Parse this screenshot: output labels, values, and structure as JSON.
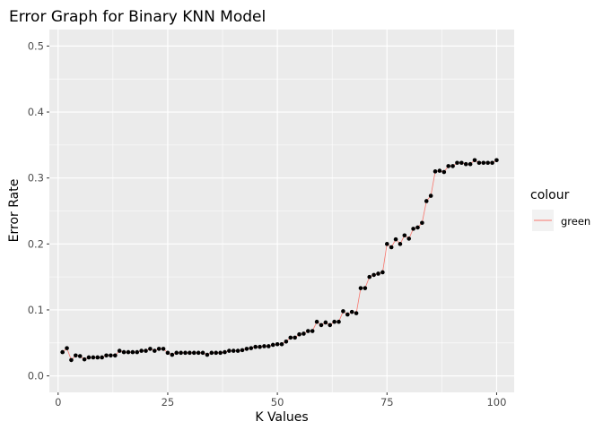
{
  "chart_data": {
    "type": "line",
    "title": "Error Graph for Binary KNN Model",
    "xlabel": "K Values",
    "ylabel": "Error Rate",
    "xlim": [
      -2,
      104
    ],
    "ylim": [
      -0.025,
      0.525
    ],
    "x_ticks": [
      0,
      25,
      50,
      75,
      100
    ],
    "y_ticks": [
      0.0,
      0.1,
      0.2,
      0.3,
      0.4,
      0.5
    ],
    "x_tick_labels": [
      "0",
      "25",
      "50",
      "75",
      "100"
    ],
    "y_tick_labels": [
      "0.0",
      "0.1",
      "0.2",
      "0.3",
      "0.4",
      "0.5"
    ],
    "grid": true,
    "legend": {
      "title": "colour",
      "position": "right"
    },
    "colors": {
      "line": "#f8766d",
      "point": "#000000",
      "panel": "#ebebeb",
      "grid": "#ffffff"
    },
    "series": [
      {
        "name": "green",
        "x": [
          1,
          2,
          3,
          4,
          5,
          6,
          7,
          8,
          9,
          10,
          11,
          12,
          13,
          14,
          15,
          16,
          17,
          18,
          19,
          20,
          21,
          22,
          23,
          24,
          25,
          26,
          27,
          28,
          29,
          30,
          31,
          32,
          33,
          34,
          35,
          36,
          37,
          38,
          39,
          40,
          41,
          42,
          43,
          44,
          45,
          46,
          47,
          48,
          49,
          50,
          51,
          52,
          53,
          54,
          55,
          56,
          57,
          58,
          59,
          60,
          61,
          62,
          63,
          64,
          65,
          66,
          67,
          68,
          69,
          70,
          71,
          72,
          73,
          74,
          75,
          76,
          77,
          78,
          79,
          80,
          81,
          82,
          83,
          84,
          85,
          86,
          87,
          88,
          89,
          90,
          91,
          92,
          93,
          94,
          95,
          96,
          97,
          98,
          99,
          100
        ],
        "values": [
          0.036,
          0.042,
          0.024,
          0.031,
          0.03,
          0.025,
          0.028,
          0.028,
          0.028,
          0.028,
          0.031,
          0.031,
          0.031,
          0.038,
          0.036,
          0.036,
          0.036,
          0.036,
          0.038,
          0.038,
          0.041,
          0.038,
          0.041,
          0.041,
          0.035,
          0.032,
          0.035,
          0.035,
          0.035,
          0.035,
          0.035,
          0.035,
          0.035,
          0.032,
          0.035,
          0.035,
          0.035,
          0.036,
          0.038,
          0.038,
          0.038,
          0.039,
          0.041,
          0.042,
          0.044,
          0.044,
          0.045,
          0.045,
          0.047,
          0.048,
          0.048,
          0.052,
          0.058,
          0.058,
          0.063,
          0.064,
          0.068,
          0.068,
          0.082,
          0.077,
          0.081,
          0.077,
          0.082,
          0.082,
          0.098,
          0.093,
          0.097,
          0.095,
          0.133,
          0.133,
          0.15,
          0.153,
          0.155,
          0.157,
          0.2,
          0.195,
          0.207,
          0.2,
          0.213,
          0.208,
          0.223,
          0.225,
          0.232,
          0.265,
          0.273,
          0.31,
          0.311,
          0.309,
          0.318,
          0.318,
          0.323,
          0.323,
          0.321,
          0.321,
          0.327,
          0.323,
          0.323,
          0.323,
          0.323,
          0.327
        ]
      }
    ]
  }
}
